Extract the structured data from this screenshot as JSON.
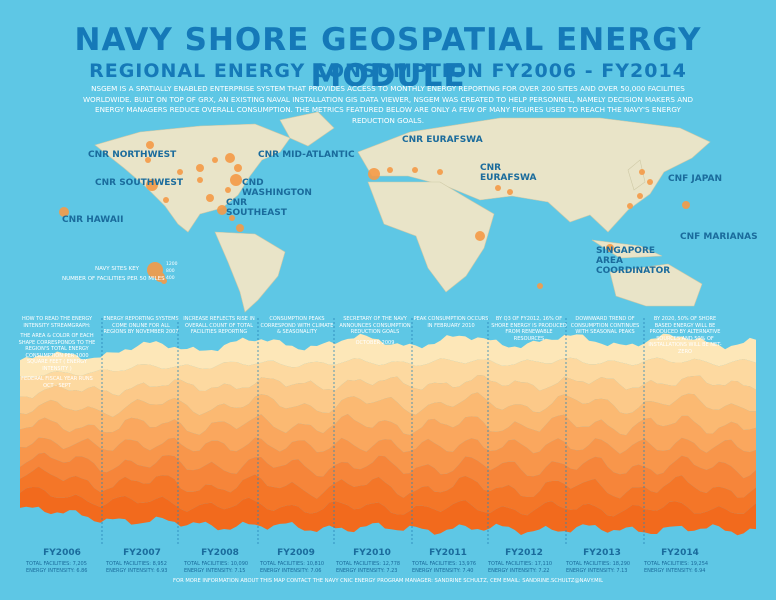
{
  "header": {
    "title": "NAVY SHORE GEOSPATIAL ENERGY MODULE",
    "subtitle": "REGIONAL ENERGY CONSUMPTION FY2006 - FY2014",
    "intro": "NSGEM is a spatially enabled enterprise system that provides access to monthly energy reporting for over 200 sites and over 50,000 facilities worldwide. Built on top of GRX, an existing naval installation GIS data viewer, NSGEM was created to help personnel, namely decision makers and energy managers reduce overall consumption. The metrics featured below are only a few of many figures used to reach the Navy's energy reduction goals."
  },
  "map": {
    "regions": [
      "CNR NORTHWEST",
      "CNR SOUTHWEST",
      "CNR MID-ATLANTIC",
      "CND WASHINGTON",
      "CNR SOUTHEAST",
      "CNR HAWAII",
      "CNR EURAFSWA",
      "CNR EURAFSWA",
      "CNF JAPAN",
      "CNF MARIANAS",
      "SINGAPORE AREA COORDINATOR"
    ],
    "key": {
      "title": "NAVY SITES KEY",
      "subtitle": "NUMBER OF FACILITIES PER 50 MILES",
      "sizes": [
        "1200",
        "800",
        "400"
      ]
    }
  },
  "annotations": [
    [
      "HOW TO READ THE ENERGY INTENSITY STREAMGRAPH:",
      "THE AREA & COLOR OF EACH SHAPE CORRESPONDS TO THE REGION'S TOTAL ENERGY CONSUMPTION PER 1000 SQUARE FEET ( ENERGY INTENSITY )",
      "FEDERAL FISCAL YEAR RUNS OCT - SEPT"
    ],
    [
      "ENERGY REPORTING SYSTEMS COME ONLINE FOR ALL REGIONS BY NOVEMBER 2007"
    ],
    [
      "INCREASE REFLECTS RISE IN OVERALL COUNT OF TOTAL FACILITIES REPORTING"
    ],
    [
      "CONSUMPTION PEAKS CORRESPOND WITH CLIMATE & SEASONALITY"
    ],
    [
      "SECRETARY OF THE NAVY ANNOUNCES CONSUMPTION REDUCTION GOALS",
      "OCTOBER 2009"
    ],
    [
      "PEAK CONSUMPTION OCCURS IN FEBRUARY 2010"
    ],
    [
      "BY Q3 OF FY2012, 16% OF SHORE ENERGY IS PRODUCED FROM RENEWABLE RESOURCES"
    ],
    [
      "DOWNWARD TREND OF CONSUMPTION CONTINUES WITH SEASONAL PEAKS"
    ],
    [
      "BY 2020, 50% OF SHORE BASED ENERGY WILL BE PRODUCED BY ALTERNATIVE SOURCES AND 50% OF INSTALLATIONS WILL BE NET-ZERO"
    ]
  ],
  "years": [
    {
      "label": "FY2006",
      "facilities": "TOTAL FACILITIES: 7,205",
      "intensity": "ENERGY INTENSITY: 6.86"
    },
    {
      "label": "FY2007",
      "facilities": "TOTAL FACILITIES: 8,952",
      "intensity": "ENERGY INTENSITY: 6.93"
    },
    {
      "label": "FY2008",
      "facilities": "TOTAL FACILITIES: 10,090",
      "intensity": "ENERGY INTENSITY: 7.15"
    },
    {
      "label": "FY2009",
      "facilities": "TOTAL FACILITIES: 10,810",
      "intensity": "ENERGY INTENSITY: 7.06"
    },
    {
      "label": "FY2010",
      "facilities": "TOTAL FACILITIES: 12,778",
      "intensity": "ENERGY INTENSITY: 7.23"
    },
    {
      "label": "FY2011",
      "facilities": "TOTAL FACILITIES: 13,976",
      "intensity": "ENERGY INTENSITY: 7.40"
    },
    {
      "label": "FY2012",
      "facilities": "TOTAL FACILITIES: 17,110",
      "intensity": "ENERGY INTENSITY: 7.22"
    },
    {
      "label": "FY2013",
      "facilities": "TOTAL FACILITIES: 18,290",
      "intensity": "ENERGY INTENSITY: 7.13"
    },
    {
      "label": "FY2014",
      "facilities": "TOTAL FACILITIES: 19,254",
      "intensity": "ENERGY INTENSITY: 6.94"
    }
  ],
  "footer": "FOR MORE INFORMATION ABOUT THIS MAP CONTACT THE NAVY CNIC ENERGY PROGRAM MANAGER: SANDRINE SCHULTZ, CEM EMAIL: SANDRINE.SCHULTZ@NAVY.MIL"
}
